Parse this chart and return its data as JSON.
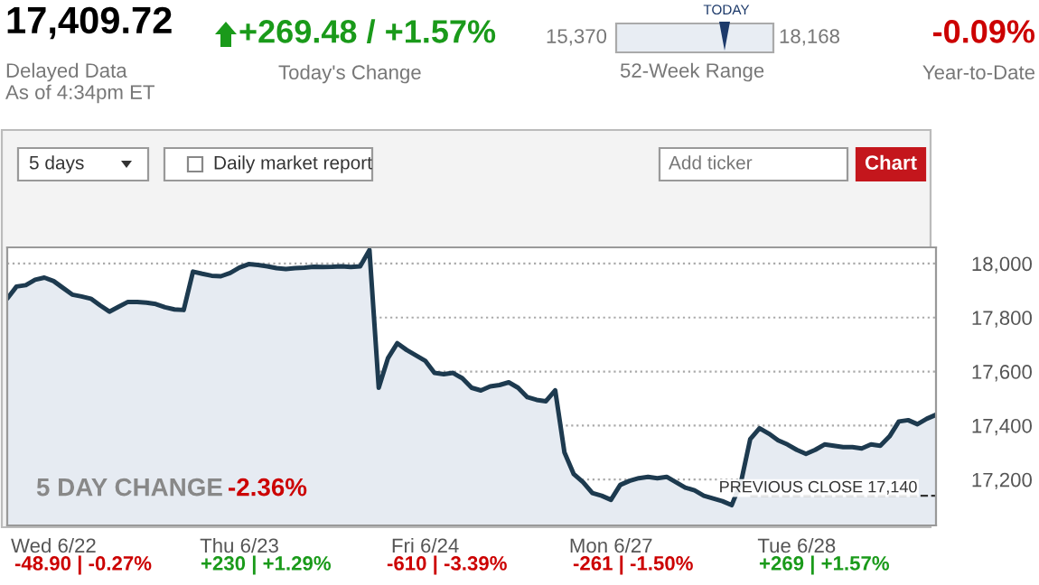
{
  "chart_data": {
    "type": "area",
    "annotations": [
      "17,409.72",
      "Delayed Data",
      "As of 4:34pm ET",
      "+269.48 / +1.57%",
      "Today's Change",
      "15,370",
      "TODAY",
      "18,168",
      "52-Week Range",
      "-0.09%",
      "Year-to-Date",
      "5 days",
      "Daily market report",
      "Add ticker",
      "Chart",
      "5 DAY CHANGE",
      "-2.36%",
      "-48.90 | -0.27%",
      "+230 | +1.29%",
      "-610 | -3.39%",
      "-261 | -1.50%",
      "+269 | +1.57%"
    ],
    "categories": [
      null,
      null,
      null,
      null,
      null,
      "Wed 6/22",
      null,
      null,
      null,
      null,
      null,
      null,
      null,
      null,
      null,
      null,
      null,
      null,
      null,
      null,
      null,
      null,
      null,
      null,
      null,
      "Thu 6/23",
      null,
      null,
      null,
      null,
      null,
      null,
      null,
      null,
      null,
      null,
      null,
      null,
      null,
      null,
      null,
      null,
      null,
      null,
      null,
      "Fri 6/24",
      null,
      null,
      null,
      null,
      null,
      null,
      null,
      null,
      null,
      null,
      null,
      null,
      null,
      null,
      null,
      null,
      null,
      null,
      null,
      "Mon 6/27",
      null,
      null,
      null,
      null,
      null,
      null,
      null,
      null,
      null,
      null,
      null,
      null,
      null,
      null,
      null,
      null,
      null,
      null,
      null,
      "Tue 6/28",
      null,
      null,
      null,
      null,
      null,
      null,
      null,
      null,
      null,
      null,
      null,
      null,
      null,
      null,
      null
    ],
    "series": [
      {
        "color": "#1d3a4f",
        "values": [
          17870,
          17915,
          17920,
          17940,
          17948,
          17935,
          17910,
          17885,
          17878,
          17870,
          17845,
          17822,
          17840,
          17858,
          17858,
          17855,
          17850,
          17838,
          17830,
          17828,
          17970,
          17962,
          17955,
          17953,
          17965,
          17985,
          17998,
          17995,
          17990,
          17983,
          17980,
          17983,
          17985,
          17988,
          17987,
          17988,
          17990,
          17987,
          17990,
          18050,
          17540,
          17650,
          17705,
          17680,
          17660,
          17640,
          17595,
          17590,
          17595,
          17575,
          17540,
          17530,
          17545,
          17550,
          17560,
          17540,
          17505,
          17495,
          17490,
          17530,
          17300,
          17220,
          17190,
          17150,
          17140,
          17125,
          17180,
          17195,
          17205,
          17210,
          17205,
          17210,
          17190,
          17170,
          17160,
          17140,
          17130,
          17120,
          17105,
          17190,
          17350,
          17390,
          17370,
          17345,
          17330,
          17310,
          17295,
          17310,
          17330,
          17325,
          17320,
          17320,
          17315,
          17330,
          17325,
          17360,
          17415,
          17420,
          17405,
          17425,
          17440
        ]
      }
    ],
    "ylim": [
      17030,
      18060
    ],
    "yticks": [
      {
        "value": 17200,
        "label": "17,200"
      },
      {
        "value": 17400,
        "label": "17,400"
      },
      {
        "value": 17600,
        "label": "17,600"
      },
      {
        "value": 17800,
        "label": "17,800"
      },
      {
        "value": 18000,
        "label": "18,000"
      }
    ],
    "ref_lines": [
      {
        "axis": "y",
        "value": 17140,
        "label": "PREVIOUS CLOSE 17,140",
        "color": "#333333",
        "line_style": "dashed"
      }
    ],
    "grid": "y"
  }
}
